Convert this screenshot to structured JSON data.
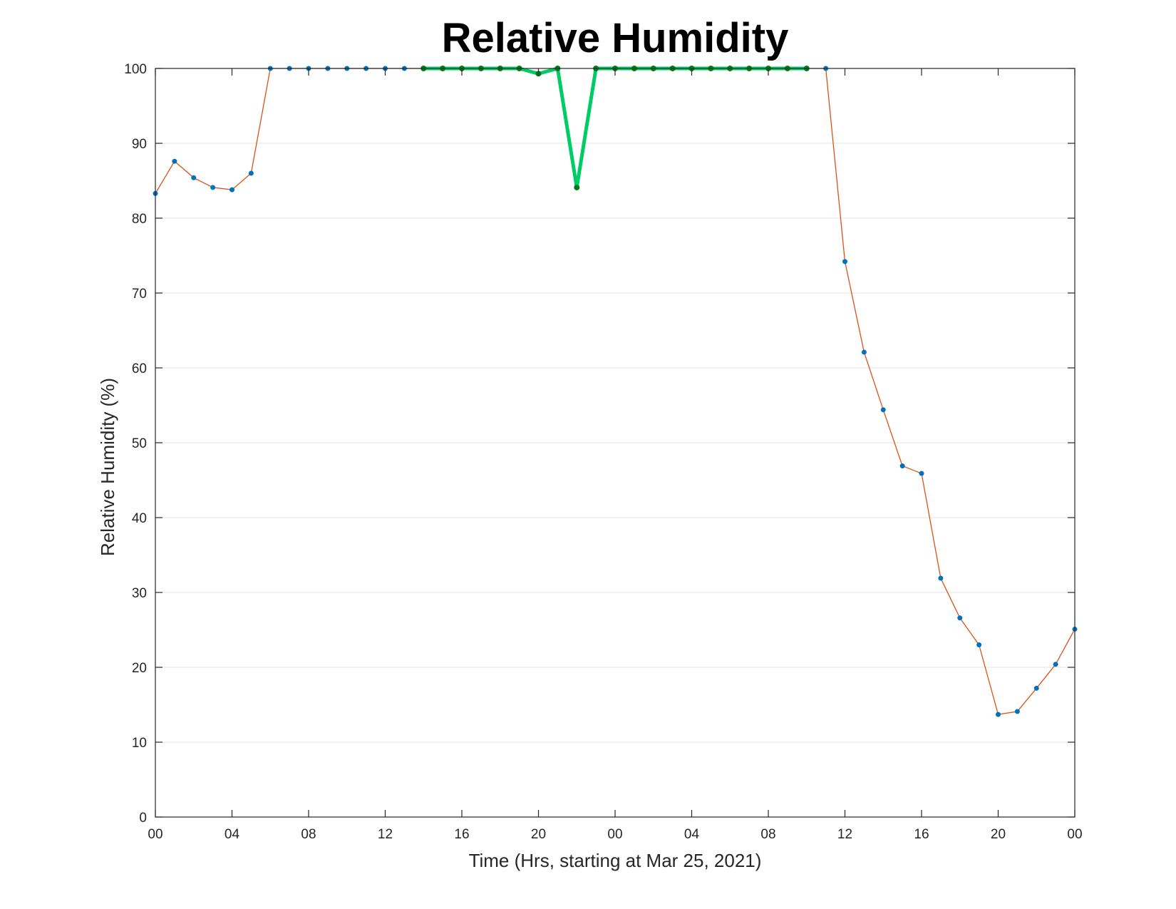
{
  "chart_data": {
    "type": "line",
    "title": "Relative Humidity",
    "xlabel": "Time (Hrs, starting at Mar 25, 2021)",
    "ylabel": "Relative Humidity (%)",
    "xlim": [
      0,
      48
    ],
    "ylim": [
      0,
      100
    ],
    "x_tick_values": [
      0,
      4,
      8,
      12,
      16,
      20,
      24,
      28,
      32,
      36,
      40,
      44,
      48
    ],
    "x_tick_labels": [
      "00",
      "04",
      "08",
      "12",
      "16",
      "20",
      "00",
      "04",
      "08",
      "12",
      "16",
      "20",
      "00"
    ],
    "y_ticks": [
      0,
      10,
      20,
      30,
      40,
      50,
      60,
      70,
      80,
      90,
      100
    ],
    "grid": "horizontal",
    "series": [
      {
        "style": "thin line with markers",
        "line_color": "#D95319",
        "marker_color": "#0072BD",
        "x": [
          0,
          1,
          2,
          3,
          4,
          5,
          6,
          7,
          8,
          9,
          10,
          11,
          12,
          13,
          14,
          15,
          16,
          17,
          18,
          19,
          20,
          21,
          22,
          23,
          24,
          25,
          26,
          27,
          28,
          29,
          30,
          31,
          32,
          33,
          34,
          35,
          36,
          37,
          38,
          39,
          40,
          41,
          42,
          43,
          44,
          45,
          46,
          47,
          48
        ],
        "y": [
          83.3,
          87.6,
          85.4,
          84.1,
          83.8,
          86.0,
          100,
          100,
          100,
          100,
          100,
          100,
          100,
          100,
          100,
          100,
          100,
          100,
          100,
          100,
          99.3,
          100,
          84.1,
          100,
          100,
          100,
          100,
          100,
          100,
          100,
          100,
          100,
          100,
          100,
          100,
          100,
          74.2,
          62.1,
          54.4,
          46.9,
          45.9,
          31.9,
          26.6,
          23.0,
          13.7,
          14.1,
          17.2,
          20.4,
          25.1
        ]
      },
      {
        "style": "thick highlighted segment",
        "line_color": "#00CC66",
        "marker_color": "#007A1F",
        "x": [
          14,
          15,
          16,
          17,
          18,
          19,
          20,
          21,
          22,
          23,
          24,
          25,
          26,
          27,
          28,
          29,
          30,
          31,
          32,
          33,
          34
        ],
        "y": [
          100,
          100,
          100,
          100,
          100,
          100,
          99.3,
          100,
          84.1,
          100,
          100,
          100,
          100,
          100,
          100,
          100,
          100,
          100,
          100,
          100,
          100
        ]
      }
    ]
  }
}
